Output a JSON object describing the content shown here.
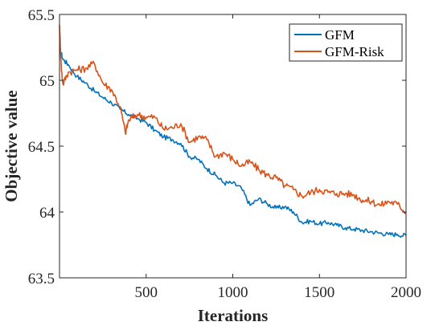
{
  "chart_data": {
    "type": "line",
    "title": "",
    "xlabel": "Iterations",
    "ylabel": "Objective value",
    "xlim": [
      0,
      2000
    ],
    "ylim": [
      63.5,
      65.5
    ],
    "xticks": [
      500,
      1000,
      1500,
      2000
    ],
    "yticks": [
      63.5,
      64,
      64.5,
      65,
      65.5
    ],
    "xtick_labels": [
      "500",
      "1000",
      "1500",
      "2000"
    ],
    "ytick_labels": [
      "63.5",
      "64",
      "64.5",
      "65",
      "65.5"
    ],
    "grid": false,
    "legend_position": "top-right",
    "series": [
      {
        "name": "GFM",
        "color": "#0072bd",
        "x": [
          0,
          20,
          50,
          100,
          150,
          200,
          250,
          300,
          350,
          400,
          450,
          500,
          550,
          600,
          650,
          700,
          750,
          800,
          850,
          900,
          950,
          1000,
          1050,
          1100,
          1150,
          1200,
          1250,
          1300,
          1350,
          1400,
          1450,
          1500,
          1550,
          1600,
          1650,
          1700,
          1750,
          1800,
          1850,
          1900,
          1950,
          2000
        ],
        "y": [
          65.25,
          65.16,
          65.12,
          65.03,
          64.98,
          64.92,
          64.87,
          64.83,
          64.78,
          64.74,
          64.71,
          64.68,
          64.62,
          64.57,
          64.55,
          64.52,
          64.42,
          64.4,
          64.33,
          64.28,
          64.22,
          64.22,
          64.18,
          64.05,
          64.1,
          64.06,
          64.03,
          64.04,
          64.0,
          63.92,
          63.93,
          63.91,
          63.92,
          63.9,
          63.88,
          63.87,
          63.86,
          63.85,
          63.84,
          63.83,
          63.83,
          63.82
        ]
      },
      {
        "name": "GFM-Risk",
        "color": "#d95319",
        "x": [
          0,
          10,
          20,
          50,
          100,
          150,
          200,
          250,
          300,
          350,
          380,
          400,
          450,
          500,
          550,
          600,
          650,
          700,
          750,
          800,
          850,
          900,
          950,
          1000,
          1050,
          1100,
          1150,
          1200,
          1250,
          1300,
          1350,
          1400,
          1450,
          1500,
          1550,
          1600,
          1650,
          1700,
          1750,
          1800,
          1850,
          1900,
          1950,
          2000
        ],
        "y": [
          65.42,
          65.1,
          64.97,
          65.06,
          65.08,
          65.09,
          65.13,
          64.98,
          64.93,
          64.8,
          64.6,
          64.7,
          64.74,
          64.72,
          64.72,
          64.63,
          64.64,
          64.67,
          64.53,
          64.57,
          64.55,
          64.42,
          64.45,
          64.4,
          64.35,
          64.38,
          64.32,
          64.28,
          64.26,
          64.2,
          64.17,
          64.12,
          64.15,
          64.17,
          64.15,
          64.14,
          64.14,
          64.13,
          64.09,
          64.08,
          64.05,
          64.08,
          64.06,
          64.0
        ]
      }
    ]
  }
}
